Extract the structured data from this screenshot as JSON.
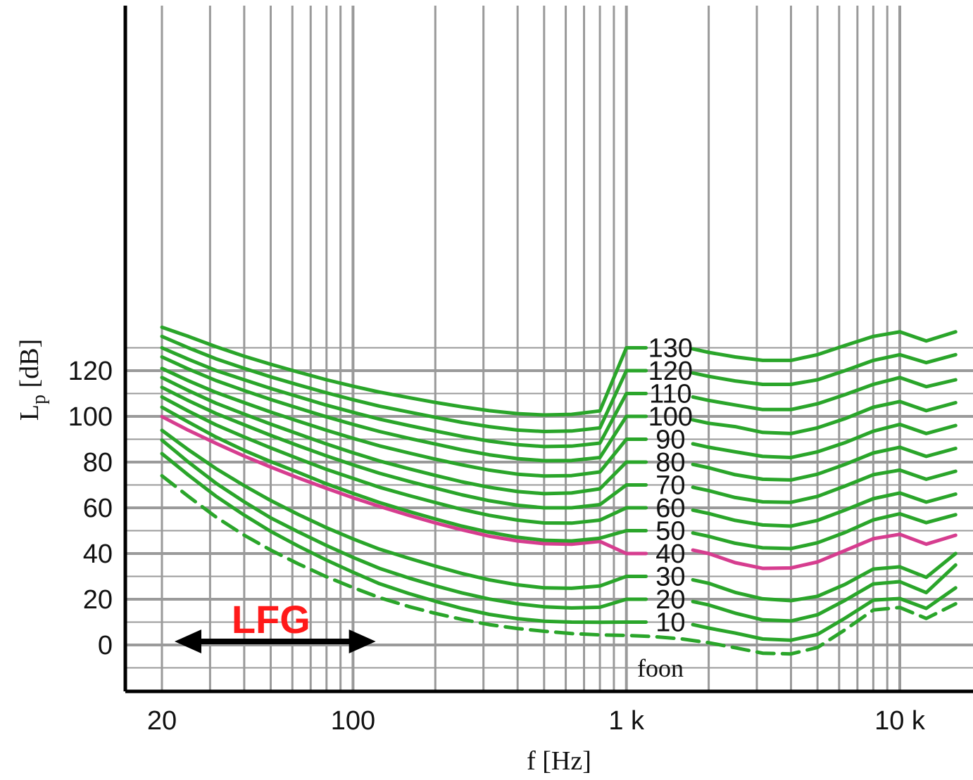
{
  "chart_data": {
    "type": "line",
    "xlabel": "f [Hz]",
    "ylabel": "Lp [dB]",
    "ylabel_main": "L",
    "ylabel_sub": "p",
    "ylabel_unit": " [dB]",
    "xscale": "log",
    "xlim": [
      19,
      17000
    ],
    "ylim": [
      -10,
      140
    ],
    "grid": true,
    "x_ticks": [
      {
        "value": 20,
        "label": "20"
      },
      {
        "value": 100,
        "label": "100"
      },
      {
        "value": 1000,
        "label": "1 k"
      },
      {
        "value": 10000,
        "label": "10 k"
      }
    ],
    "y_ticks": [
      {
        "value": 0,
        "label": "0"
      },
      {
        "value": 20,
        "label": "20"
      },
      {
        "value": 40,
        "label": "40"
      },
      {
        "value": 60,
        "label": "60"
      },
      {
        "value": 80,
        "label": "80"
      },
      {
        "value": 100,
        "label": "100"
      },
      {
        "value": 120,
        "label": "120"
      }
    ],
    "unit_label": "foon",
    "annotation": {
      "text": "LFG",
      "x_from": 20,
      "x_to": 130,
      "y": 0,
      "color": "#ff1a1a"
    },
    "colors": {
      "curve": "#2aa52a",
      "highlight": "#d63d8f",
      "grid": "#9a9a9a"
    },
    "x": [
      20,
      25,
      31.5,
      40,
      50,
      63,
      80,
      100,
      125,
      160,
      200,
      250,
      315,
      400,
      500,
      630,
      800,
      1000,
      1250,
      1600,
      2000,
      2500,
      3150,
      4000,
      5000,
      6300,
      8000,
      10000,
      12500,
      16000
    ],
    "series": [
      {
        "name": "foon",
        "dashed": true,
        "values": [
          74,
          65,
          56,
          48,
          41.5,
          35.5,
          29.8,
          25.1,
          20.7,
          16.8,
          13.8,
          11.2,
          8.9,
          7.2,
          6,
          5,
          4.4,
          4.2,
          3.7,
          2.6,
          1,
          -1.2,
          -3.6,
          -3.9,
          -1.1,
          6.6,
          15.3,
          16.4,
          11.6,
          18
        ]
      },
      {
        "name": "10",
        "values": [
          83.7,
          74.3,
          65.1,
          56.8,
          49.7,
          43.3,
          37.1,
          31.8,
          26.8,
          22.5,
          19.1,
          16,
          13.4,
          11.5,
          10.4,
          10,
          9.9,
          10,
          9.8,
          8.9,
          7.4,
          5.2,
          2.6,
          2.1,
          4.6,
          11.7,
          19.6,
          20.3,
          16,
          25
        ]
      },
      {
        "name": "20",
        "values": [
          89.6,
          80,
          70.8,
          62.6,
          55.6,
          49.5,
          43.5,
          38.3,
          33.5,
          29.3,
          25.9,
          22.8,
          20.1,
          18,
          16.7,
          16.2,
          16.5,
          20,
          19.6,
          18.5,
          17.5,
          13.9,
          11,
          10.5,
          13.2,
          19.5,
          26.7,
          27.7,
          22.9,
          35
        ]
      },
      {
        "name": "30",
        "values": [
          93.9,
          85.4,
          77.2,
          69.7,
          63.2,
          57.1,
          51.3,
          46.4,
          41.9,
          37.9,
          34.5,
          31.3,
          28.5,
          26.3,
          25,
          24.8,
          25.8,
          30,
          29,
          28.5,
          27,
          23,
          20.2,
          19.4,
          21.3,
          26.5,
          33.2,
          34.2,
          29.6,
          40
        ]
      },
      {
        "name": "40",
        "highlight": true,
        "values": [
          99.9,
          93.9,
          88.2,
          82.6,
          77.8,
          73.1,
          68.5,
          64.4,
          60.6,
          56.7,
          53.4,
          50.4,
          47.6,
          45.5,
          44.3,
          44.1,
          45.3,
          40,
          45.5,
          44.4,
          40,
          36,
          33.5,
          33.7,
          36.3,
          41.3,
          46.5,
          48.4,
          44.1,
          48
        ]
      },
      {
        "name": "50",
        "values": [
          104,
          97.5,
          91,
          85.1,
          80.2,
          75.5,
          70.5,
          66.3,
          62.3,
          58.4,
          55.1,
          52,
          49.3,
          47.1,
          45.8,
          45.5,
          46.7,
          50,
          50.3,
          49.8,
          47.5,
          44.5,
          42.5,
          42.2,
          44.7,
          49.2,
          54.7,
          57.4,
          53.5,
          57
        ]
      },
      {
        "name": "60",
        "values": [
          108.5,
          102.3,
          96.3,
          91,
          86.2,
          81.5,
          76.8,
          72.9,
          69,
          65.4,
          62.3,
          59.3,
          56.7,
          54.6,
          53.4,
          53.3,
          54.6,
          60,
          60.5,
          59.5,
          57.5,
          54.5,
          52.5,
          52,
          54.5,
          59,
          64,
          66.5,
          62.5,
          66
        ]
      },
      {
        "name": "70",
        "values": [
          112.7,
          106.9,
          101.3,
          96.3,
          91.7,
          87.2,
          82.7,
          78.8,
          75.1,
          71.6,
          68.6,
          65.7,
          63.1,
          61.1,
          60,
          60,
          61.4,
          70,
          70.8,
          69.9,
          67.5,
          64.5,
          62.6,
          62.4,
          65,
          69.5,
          74.5,
          76.5,
          72.5,
          76
        ]
      },
      {
        "name": "80",
        "values": [
          117,
          111.3,
          105.8,
          101,
          96.6,
          92.3,
          87.9,
          84.1,
          80.5,
          77.1,
          74.2,
          71.4,
          69,
          67.1,
          66.2,
          66.5,
          68.3,
          80,
          80.5,
          79.6,
          77.5,
          74.5,
          72.5,
          72.2,
          74.7,
          79,
          84,
          86.5,
          82.5,
          86
        ]
      },
      {
        "name": "90",
        "values": [
          121,
          115.6,
          110.5,
          106,
          101.9,
          97.9,
          93.9,
          90.4,
          87.1,
          84,
          81.3,
          78.8,
          76.5,
          74.7,
          73.9,
          74.1,
          75.7,
          90,
          89.3,
          88.3,
          86.5,
          84.5,
          82.5,
          82,
          84.5,
          88.5,
          93.5,
          96.5,
          92.5,
          96
        ]
      },
      {
        "name": "100",
        "values": [
          126,
          120.7,
          115.7,
          111.3,
          107.4,
          103.6,
          99.8,
          96.5,
          93.4,
          90.4,
          87.9,
          85.4,
          83.2,
          81.5,
          80.6,
          80.7,
          82,
          100,
          100,
          99,
          97,
          95.5,
          93,
          92.5,
          95,
          99,
          104,
          106.5,
          102.5,
          106
        ]
      },
      {
        "name": "110",
        "values": [
          130,
          125,
          120.1,
          116,
          112.2,
          108.6,
          104.9,
          101.8,
          98.8,
          96,
          93.6,
          91.3,
          89.2,
          87.6,
          86.8,
          87,
          88.3,
          110,
          109.5,
          108.5,
          107,
          105,
          103,
          103,
          105.5,
          109.5,
          114,
          117,
          113,
          116
        ]
      },
      {
        "name": "120",
        "values": [
          135,
          130,
          125.2,
          121,
          117.3,
          113.8,
          110.3,
          107.3,
          104.5,
          101.9,
          99.6,
          97.4,
          95.5,
          94,
          93.4,
          93.6,
          95,
          120,
          120.5,
          119.5,
          117.5,
          115.5,
          114,
          114,
          116,
          120,
          124.5,
          127,
          123.5,
          127
        ]
      },
      {
        "name": "130",
        "values": [
          139,
          135,
          130.5,
          126.3,
          122.8,
          119.4,
          116,
          113.2,
          110.6,
          108.2,
          106.1,
          104.2,
          102.5,
          101.2,
          100.6,
          100.9,
          102.4,
          130,
          131,
          130,
          128,
          126,
          124.5,
          124.5,
          127,
          131,
          135,
          137,
          133,
          137
        ]
      }
    ]
  }
}
